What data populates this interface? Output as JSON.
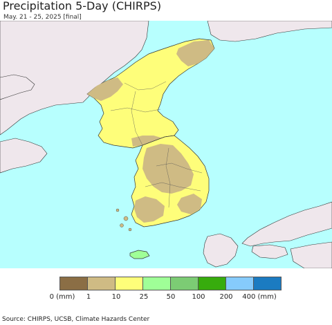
{
  "title": "Precipitation 5-Day (CHIRPS)",
  "subtitle": "May. 21 - 25, 2025 [final]",
  "colors": {
    "ocean": "#b7fffe",
    "land_outside": "#efe7ec",
    "border": "#333333"
  },
  "legend": {
    "colors": [
      "#8b6e45",
      "#cfbb84",
      "#fefe7a",
      "#9fff97",
      "#7ccc74",
      "#37ac0d",
      "#86cbfc",
      "#1b7bc1"
    ],
    "labels": [
      "0 (mm)",
      "1",
      "10",
      "25",
      "50",
      "100",
      "200",
      "400 (mm)"
    ]
  },
  "source": "Source: CHIRPS, UCSB, Climate Hazards Center"
}
